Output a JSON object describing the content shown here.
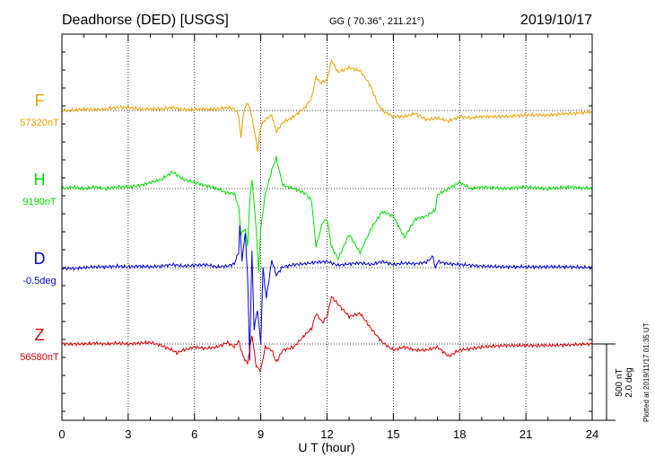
{
  "header": {
    "station": "Deadhorse (DED)  [USGS]",
    "coords": "GG ( 70.36°, 211.21°)",
    "date": "2019/10/17"
  },
  "plotted_note": "Plotted at 2019/11/17 01:35 UT",
  "chart_data": {
    "type": "line",
    "xlabel": "U T (hour)",
    "xlim": [
      0,
      24
    ],
    "xticks": [
      "0",
      "3",
      "6",
      "9",
      "12",
      "15",
      "18",
      "21",
      "24"
    ],
    "scale_labels": [
      "500 nT",
      "2.0 deg"
    ],
    "series": [
      {
        "name": "F",
        "baseline_label": "57320nT",
        "color": "#f0a000",
        "x": [
          0,
          0.5,
          1,
          1.5,
          2,
          2.5,
          3,
          3.5,
          4,
          4.5,
          5,
          5.5,
          6,
          6.5,
          7,
          7.5,
          7.8,
          8,
          8.1,
          8.2,
          8.35,
          8.5,
          8.7,
          8.85,
          9,
          9.2,
          9.5,
          9.7,
          10,
          10.5,
          11,
          11.3,
          11.5,
          11.7,
          12,
          12.2,
          12.5,
          13,
          13.5,
          13.8,
          14,
          14.3,
          14.6,
          15,
          15.5,
          16,
          16.5,
          17,
          17.5,
          18,
          18.5,
          19,
          20,
          21,
          22,
          23,
          24
        ],
        "y": [
          0,
          0,
          10,
          5,
          10,
          20,
          20,
          10,
          10,
          10,
          20,
          5,
          5,
          10,
          10,
          20,
          10,
          -30,
          -180,
          -40,
          50,
          20,
          -120,
          -260,
          -100,
          -60,
          -30,
          -140,
          -80,
          -40,
          20,
          80,
          220,
          180,
          200,
          330,
          250,
          280,
          260,
          200,
          150,
          40,
          -10,
          -40,
          -40,
          -20,
          -60,
          -50,
          -70,
          -40,
          -50,
          -40,
          -40,
          -30,
          -30,
          -20,
          -10
        ]
      },
      {
        "name": "H",
        "baseline_label": "9190nT",
        "color": "#00e000",
        "x": [
          0,
          0.5,
          1,
          1.5,
          2,
          2.5,
          3,
          3.5,
          4,
          4.5,
          5,
          5.5,
          6,
          6.5,
          7,
          7.5,
          7.8,
          8,
          8.1,
          8.3,
          8.4,
          8.5,
          8.6,
          8.7,
          8.8,
          8.9,
          9,
          9.2,
          9.5,
          9.7,
          10,
          10.5,
          11,
          11.3,
          11.5,
          11.8,
          12,
          12.2,
          12.5,
          13,
          13.5,
          14,
          14.5,
          15,
          15.5,
          16,
          16.5,
          16.9,
          17,
          17.5,
          18,
          18.5,
          19,
          20,
          21,
          22,
          23,
          24
        ],
        "y": [
          0,
          10,
          0,
          10,
          0,
          10,
          10,
          20,
          40,
          60,
          110,
          60,
          40,
          20,
          0,
          -30,
          -30,
          -120,
          -300,
          -260,
          -380,
          -80,
          60,
          -100,
          -280,
          -550,
          -260,
          -40,
          120,
          200,
          20,
          0,
          -30,
          -80,
          -380,
          -220,
          -200,
          -380,
          -460,
          -300,
          -420,
          -260,
          -150,
          -180,
          -320,
          -200,
          -180,
          -140,
          -40,
          0,
          40,
          0,
          10,
          0,
          10,
          0,
          10,
          0
        ]
      },
      {
        "name": "D",
        "baseline_label": "-0.5deg",
        "color": "#0000e0",
        "x": [
          0,
          0.5,
          1,
          1.5,
          2,
          2.5,
          3,
          3.5,
          4,
          4.5,
          5,
          5.5,
          6,
          6.5,
          7,
          7.5,
          7.8,
          8,
          8.05,
          8.15,
          8.3,
          8.4,
          8.5,
          8.6,
          8.7,
          8.85,
          9,
          9.1,
          9.25,
          9.5,
          9.7,
          10,
          10.5,
          11,
          11.5,
          12,
          12.5,
          13,
          13.5,
          14,
          14.5,
          15,
          15.5,
          16,
          16.5,
          16.8,
          16.9,
          17,
          17.5,
          18,
          19,
          20,
          21,
          22,
          23,
          24
        ],
        "y": [
          -0.02,
          -0.02,
          0,
          0.02,
          0.02,
          0.04,
          0.02,
          0.04,
          0.02,
          0.04,
          0.08,
          0.04,
          0.06,
          0.08,
          0.02,
          0.04,
          0.1,
          0.4,
          1.1,
          0.2,
          0.9,
          -0.2,
          -2.4,
          0.4,
          -1.6,
          -1.1,
          -2.0,
          0,
          -0.8,
          0.2,
          -0.2,
          0.02,
          0.08,
          0.1,
          0.14,
          0.16,
          0.06,
          0.1,
          0.12,
          0.08,
          0.16,
          0.08,
          0.12,
          0.1,
          0.14,
          0.3,
          -0.04,
          0.16,
          0.1,
          0.08,
          0.04,
          0.02,
          0.02,
          0.02,
          0.02,
          0
        ]
      },
      {
        "name": "Z",
        "baseline_label": "56580nT",
        "color": "#e00000",
        "x": [
          0,
          0.5,
          1,
          1.5,
          2,
          2.5,
          3,
          3.5,
          4,
          4.5,
          5,
          5.2,
          5.5,
          6,
          6.5,
          7,
          7.5,
          7.8,
          8,
          8.2,
          8.4,
          8.6,
          8.8,
          9,
          9.2,
          9.5,
          9.7,
          10,
          10.5,
          11,
          11.3,
          11.5,
          11.8,
          12,
          12.2,
          12.5,
          13,
          13.5,
          14,
          14.5,
          15,
          15.5,
          16,
          16.5,
          17,
          17.5,
          18,
          18.5,
          19,
          20,
          21,
          22,
          23,
          24
        ],
        "y": [
          0,
          0,
          0,
          5,
          0,
          5,
          0,
          5,
          10,
          -10,
          -40,
          -60,
          -40,
          -20,
          -30,
          -20,
          10,
          -20,
          20,
          -80,
          -130,
          60,
          -150,
          -170,
          -20,
          -40,
          -120,
          -40,
          -20,
          60,
          100,
          200,
          140,
          180,
          310,
          260,
          180,
          200,
          100,
          10,
          -40,
          -20,
          -40,
          -40,
          -20,
          -80,
          -40,
          -30,
          -20,
          -10,
          -10,
          -10,
          -5,
          0
        ]
      }
    ]
  }
}
